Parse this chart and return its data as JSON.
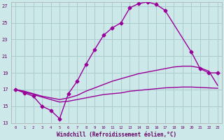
{
  "xlabel": "Windchill (Refroidissement éolien,°C)",
  "background_color": "#cce8e8",
  "grid_color": "#aacccc",
  "line_color": "#990099",
  "xlim": [
    -0.5,
    23.5
  ],
  "ylim": [
    13,
    27.5
  ],
  "yticks": [
    13,
    15,
    17,
    19,
    21,
    23,
    25,
    27
  ],
  "xticks": [
    0,
    1,
    2,
    3,
    4,
    5,
    6,
    7,
    8,
    9,
    10,
    11,
    12,
    13,
    14,
    15,
    16,
    17,
    18,
    19,
    20,
    21,
    22,
    23
  ],
  "line1_x": [
    0,
    1,
    2,
    3,
    4,
    5,
    6,
    7,
    8,
    9,
    10,
    11,
    12,
    13,
    14,
    15,
    16,
    17,
    20,
    21,
    22,
    23
  ],
  "line1_y": [
    17.0,
    16.6,
    16.2,
    15.0,
    14.5,
    13.5,
    16.5,
    18.0,
    20.0,
    21.8,
    23.5,
    24.4,
    25.0,
    26.8,
    27.3,
    27.5,
    27.2,
    26.5,
    21.5,
    19.5,
    19.0,
    19.0
  ],
  "line2_x": [
    0,
    1,
    2,
    3,
    4,
    5,
    6,
    7,
    8,
    9,
    10,
    11,
    12,
    13,
    14,
    15,
    16,
    17,
    18,
    19,
    20,
    21,
    22,
    23
  ],
  "line2_y": [
    17.0,
    16.8,
    16.5,
    16.2,
    16.0,
    15.8,
    16.0,
    16.3,
    16.8,
    17.2,
    17.6,
    18.0,
    18.3,
    18.6,
    18.9,
    19.1,
    19.3,
    19.5,
    19.7,
    19.8,
    19.8,
    19.6,
    19.2,
    17.5
  ],
  "line3_x": [
    0,
    1,
    2,
    3,
    4,
    5,
    6,
    7,
    8,
    9,
    10,
    11,
    12,
    13,
    14,
    15,
    16,
    17,
    18,
    19,
    20,
    21,
    22,
    23
  ],
  "line3_y": [
    17.0,
    16.7,
    16.4,
    16.1,
    15.8,
    15.5,
    15.6,
    15.8,
    16.0,
    16.2,
    16.4,
    16.5,
    16.6,
    16.8,
    16.9,
    17.0,
    17.1,
    17.2,
    17.25,
    17.3,
    17.3,
    17.25,
    17.2,
    17.15
  ],
  "markersize": 2.5,
  "linewidth": 1.0
}
